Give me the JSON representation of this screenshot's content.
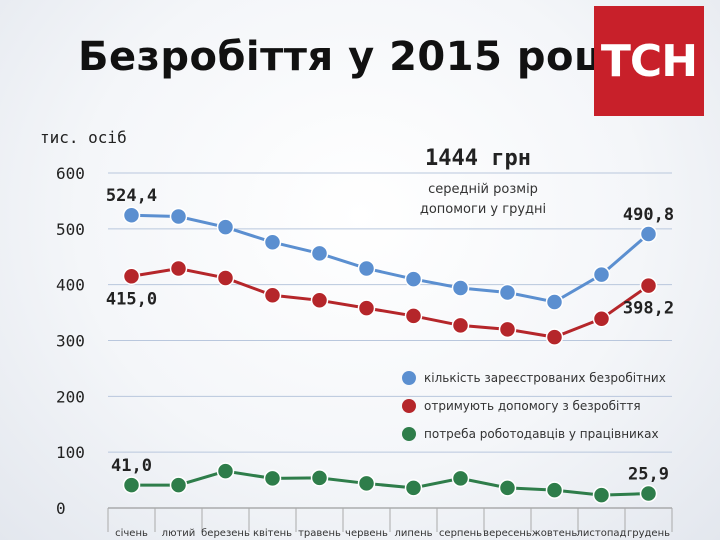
{
  "header": {
    "title": "Безробіття у 2015 році",
    "logo_text": "ТСН",
    "logo_color": "#c8202a"
  },
  "annotation": {
    "amount": "1444 грн",
    "description_lines": [
      "середній розмір",
      "допомоги у грудні"
    ]
  },
  "chart_data": {
    "type": "line",
    "title": "Безробіття у 2015 році",
    "ylabel": "тис. осіб",
    "xlabel": "",
    "ylim": [
      0,
      600
    ],
    "yticks": [
      0,
      100,
      200,
      300,
      400,
      500,
      600
    ],
    "grid": true,
    "categories": [
      "січень",
      "лютий",
      "березень",
      "квітень",
      "травень",
      "червень",
      "липень",
      "серпень",
      "вересень",
      "жовтень",
      "листопад",
      "грудень"
    ],
    "series": [
      {
        "name": "кількість зареєстрованих безробітних",
        "color": "#5b8fd0",
        "values": [
          524.4,
          522,
          503,
          476,
          456,
          429,
          410,
          394,
          386,
          369,
          418,
          490.8
        ],
        "labels": [
          {
            "index": 0,
            "text": "524,4",
            "position": "above"
          },
          {
            "index": 11,
            "text": "490,8",
            "position": "above"
          }
        ]
      },
      {
        "name": "отримують допомогу з безробіття",
        "color": "#b5262a",
        "values": [
          415.0,
          429,
          412,
          381,
          372,
          358,
          344,
          327,
          320,
          306,
          339,
          398.2
        ],
        "labels": [
          {
            "index": 0,
            "text": "415,0",
            "position": "below"
          },
          {
            "index": 11,
            "text": "398,2",
            "position": "below"
          }
        ]
      },
      {
        "name": "потреба роботодавців у працівниках",
        "color": "#2e7d4a",
        "values": [
          41.0,
          41,
          66,
          53,
          54,
          44,
          36,
          53,
          36,
          32,
          23,
          25.9
        ],
        "labels": [
          {
            "index": 0,
            "text": "41,0",
            "position": "above"
          },
          {
            "index": 11,
            "text": "25,9",
            "position": "above"
          }
        ]
      }
    ],
    "legend_position": "bottom-right"
  }
}
